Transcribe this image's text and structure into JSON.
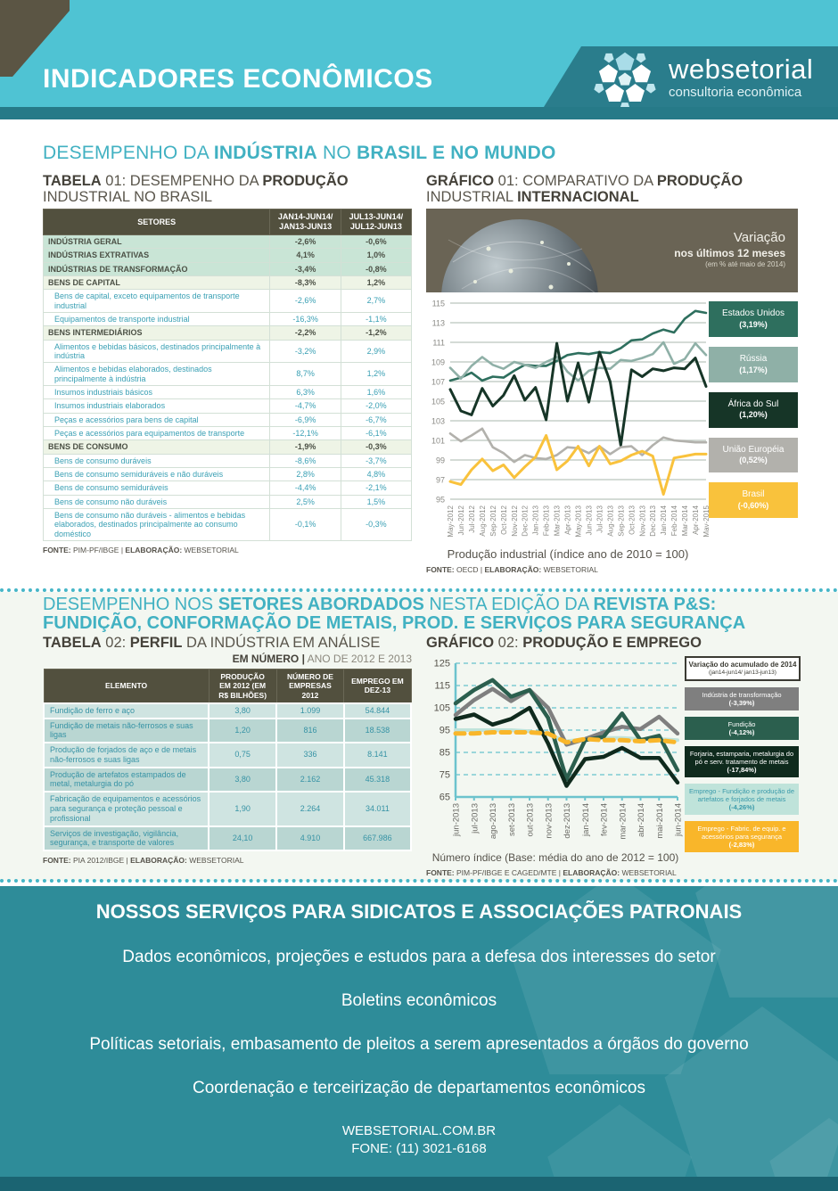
{
  "header": {
    "title": "INDICADORES ECONÔMICOS",
    "brand": "websetorial",
    "brand_sub": "consultoria econômica"
  },
  "section1": {
    "title": {
      "a": "DESEMPENHO DA ",
      "b": "INDÚSTRIA",
      "c": " NO ",
      "d": "BRASIL E NO MUNDO"
    },
    "table": {
      "title": {
        "a": "TABELA",
        "b": " 01: DESEMPENHO DA ",
        "c": "PRODUÇÃO",
        "line2": "INDUSTRIAL NO BRASIL"
      },
      "headers": [
        "SETORES",
        "JAN14-JUN14/\nJAN13-JUN13",
        "JUL13-JUN14/\nJUL12-JUN13"
      ],
      "rows": [
        {
          "type": "major",
          "label": "INDÚSTRIA GERAL",
          "v1": "-2,6%",
          "v2": "-0,6%"
        },
        {
          "type": "major",
          "label": "INDÚSTRIAS EXTRATIVAS",
          "v1": "4,1%",
          "v2": "1,0%"
        },
        {
          "type": "major",
          "label": "INDÚSTRIAS DE TRANSFORMAÇÃO",
          "v1": "-3,4%",
          "v2": "-0,8%"
        },
        {
          "type": "group",
          "label": "BENS DE CAPITAL",
          "v1": "-8,3%",
          "v2": "1,2%"
        },
        {
          "type": "sub",
          "label": "Bens de capital, exceto equipamentos de transporte industrial",
          "v1": "-2,6%",
          "v2": "2,7%"
        },
        {
          "type": "sub",
          "label": "Equipamentos de transporte industrial",
          "v1": "-16,3%",
          "v2": "-1,1%"
        },
        {
          "type": "group",
          "label": "BENS INTERMEDIÁRIOS",
          "v1": "-2,2%",
          "v2": "-1,2%"
        },
        {
          "type": "sub",
          "label": "Alimentos e bebidas básicos, destinados principalmente à indústria",
          "v1": "-3,2%",
          "v2": "2,9%"
        },
        {
          "type": "sub",
          "label": "Alimentos e bebidas elaborados, destinados principalmente à indústria",
          "v1": "8,7%",
          "v2": "1,2%"
        },
        {
          "type": "sub",
          "label": "Insumos industriais básicos",
          "v1": "6,3%",
          "v2": "1,6%"
        },
        {
          "type": "sub",
          "label": "Insumos industriais elaborados",
          "v1": "-4,7%",
          "v2": "-2,0%"
        },
        {
          "type": "sub",
          "label": "Peças e acessórios para bens de capital",
          "v1": "-6,9%",
          "v2": "-6,7%"
        },
        {
          "type": "sub",
          "label": "Peças e acessórios para equipamentos de transporte",
          "v1": "-12,1%",
          "v2": "-6,1%"
        },
        {
          "type": "group",
          "label": "BENS DE CONSUMO",
          "v1": "-1,9%",
          "v2": "-0,3%"
        },
        {
          "type": "sub",
          "label": "Bens de consumo duráveis",
          "v1": "-8,6%",
          "v2": "-3,7%"
        },
        {
          "type": "sub",
          "label": "Bens de consumo semiduráveis e não duráveis",
          "v1": "2,8%",
          "v2": "4,8%"
        },
        {
          "type": "sub",
          "label": "Bens de consumo semiduráveis",
          "v1": "-4,4%",
          "v2": "-2,1%"
        },
        {
          "type": "sub",
          "label": "Bens de consumo não duráveis",
          "v1": "2,5%",
          "v2": "1,5%"
        },
        {
          "type": "sub",
          "label": "Bens de consumo não duráveis - alimentos e bebidas elaborados, destinados principalmente ao consumo doméstico",
          "v1": "-0,1%",
          "v2": "-0,3%"
        }
      ],
      "fonte": {
        "a": "FONTE:",
        "b": " PIM-PF/IBGE | ",
        "c": "ELABORAÇÃO:",
        "d": " WEBSETORIAL"
      }
    },
    "chart": {
      "title": {
        "a": "GRÁFICO",
        "b": " 01: COMPARATIVO DA ",
        "c": "PRODUÇÃO",
        "d": "INDUSTRIAL ",
        "e": "INTERNACIONAL"
      },
      "banner": {
        "l1": "Variação",
        "l2": "nos últimos 12 meses",
        "l3": "(em % até maio de 2014)"
      },
      "legend": [
        {
          "label": "Estados Unidos",
          "value": "(3,19%)",
          "color": "#2e6f5e",
          "text": "#ffffff"
        },
        {
          "label": "Rússia",
          "value": "(1,17%)",
          "color": "#8fb0a7",
          "text": "#ffffff"
        },
        {
          "label": "África do Sul",
          "value": "(1,20%)",
          "color": "#163527",
          "text": "#ffffff"
        },
        {
          "label": "União Européia",
          "value": "(0,52%)",
          "color": "#b2b1ac",
          "text": "#ffffff"
        },
        {
          "label": "Brasil",
          "value": "(-0,60%)",
          "color": "#f9c23c",
          "text": "#ffffff"
        }
      ],
      "caption": "Produção industrial (índice ano de 2010 = 100)",
      "fonte": {
        "a": "FONTE:",
        "b": " OECD | ",
        "c": "ELABORAÇÃO:",
        "d": " WEBSETORIAL"
      }
    }
  },
  "section2": {
    "title": {
      "a": "DESEMPENHO NOS ",
      "b": "SETORES ABORDADOS",
      "c": " NESTA EDIÇÃO DA ",
      "d": "REVISTA P&S:",
      "line2": "FUNDIÇÃO, CONFORMAÇÃO DE METAIS, PROD. E SERVIÇOS PARA SEGURANÇA"
    },
    "table": {
      "title": {
        "a": "TABELA",
        "b": " 02: ",
        "c": "PERFIL",
        "d": " DA INDÚSTRIA EM ANÁLISE"
      },
      "subtitle": {
        "a": "EM NÚMERO |",
        "b": " ANO DE 2012 E 2013"
      },
      "headers": [
        "ELEMENTO",
        "PRODUÇÃO\nEM 2012 (EM\nR$ BILHÕES)",
        "NÚMERO DE\nEMPRESAS\n2012",
        "EMPREGO EM\nDEZ-13"
      ],
      "rows": [
        {
          "label": "Fundição de ferro e aço",
          "v1": "3,80",
          "v2": "1.099",
          "v3": "54.844"
        },
        {
          "label": "Fundição de metais não-ferrosos e suas ligas",
          "v1": "1,20",
          "v2": "816",
          "v3": "18.538"
        },
        {
          "label": "Produção de forjados de aço e de metais não-ferrosos e suas ligas",
          "v1": "0,75",
          "v2": "336",
          "v3": "8.141"
        },
        {
          "label": "Produção de artefatos estampados de metal, metalurgia do pó",
          "v1": "3,80",
          "v2": "2.162",
          "v3": "45.318"
        },
        {
          "label": "Fabricação de equipamentos e acessórios para segurança e proteção pessoal e profissional",
          "v1": "1,90",
          "v2": "2.264",
          "v3": "34.011"
        },
        {
          "label": "Serviços de investigação, vigilância, segurança, e transporte de valores",
          "v1": "24,10",
          "v2": "4.910",
          "v3": "667.986"
        }
      ],
      "fonte": {
        "a": "FONTE:",
        "b": " PIA 2012/IBGE | ",
        "c": "ELABORAÇÃO:",
        "d": " WEBSETORIAL"
      }
    },
    "chart": {
      "title": {
        "a": "GRÁFICO",
        "b": " 02: ",
        "c": "PRODUÇÃO E EMPREGO"
      },
      "legend_title": {
        "a": "Variação do acumulado de 2014",
        "b": "(jan14-jun14/ jan13-jun13)"
      },
      "legend": [
        {
          "label": "Indústria de transformação",
          "value": "(-3,39%)",
          "color": "#7f7f7f",
          "text": "#ffffff"
        },
        {
          "label": "Fundição",
          "value": "(-4,12%)",
          "color": "#2b5f4e",
          "text": "#ffffff"
        },
        {
          "label": "Forjaria, estamparia, metalurgia do pó e serv. tratamento de metais",
          "value": "(-17,84%)",
          "color": "#0f2a1d",
          "text": "#ffffff"
        },
        {
          "label": "Emprego - Fundição e produção de artefatos e forjados de metais",
          "value": "(-4,26%)",
          "color": "#bfe3da",
          "text": "#3a9aaa"
        },
        {
          "label": "Emprego - Fabric. de equip. e acessórios para segurança",
          "value": "(-2,83%)",
          "color": "#f9b62a",
          "text": "#ffffff"
        }
      ],
      "caption": "Número índice (Base: média do ano de 2012 = 100)",
      "fonte": {
        "a": "FONTE:",
        "b": " PIM-PF/IBGE E CAGED/MTE | ",
        "c": "ELABORAÇÃO:",
        "d": " WEBSETORIAL"
      }
    }
  },
  "bottom": {
    "heading": "NOSSOS SERVIÇOS PARA SIDICATOS E ASSOCIAÇÕES PATRONAIS",
    "lines": [
      "Dados econômicos, projeções e estudos para a defesa dos interesses do setor",
      "Boletins econômicos",
      "Políticas setoriais, embasamento de pleitos a serem apresentados a órgãos do governo",
      "Coordenação e terceirização de departamentos econômicos"
    ],
    "site": "WEBSETORIAL.COM.BR",
    "phone": "FONE: (11) 3021-6168"
  },
  "chart_data": [
    {
      "type": "line",
      "title": "Comparativo da produção industrial internacional",
      "ylabel": "Produção industrial (índice ano de 2010 = 100)",
      "ylim": [
        95,
        115
      ],
      "yticks": [
        95,
        97,
        99,
        101,
        103,
        105,
        107,
        109,
        111,
        113,
        115
      ],
      "x": [
        "May-2012",
        "Jun-2012",
        "Jul-2012",
        "Aug-2012",
        "Sep-2012",
        "Oct-2012",
        "Nov-2012",
        "Dec-2012",
        "Jan-2013",
        "Feb-2013",
        "Mar-2013",
        "Apr-2013",
        "May-2013",
        "Jun-2013",
        "Jul-2013",
        "Aug-2013",
        "Sep-2013",
        "Oct-2013",
        "Nov-2013",
        "Dec-2013",
        "Jan-2014",
        "Feb-2014",
        "Mar-2014",
        "Apr-2014",
        "May-2015"
      ],
      "series": [
        {
          "name": "Estados Unidos",
          "color": "#2e6f5e",
          "width": 2.6,
          "values": [
            107.1,
            107.4,
            107.9,
            107.1,
            107.5,
            107.4,
            108.1,
            108.7,
            108.6,
            108.6,
            109.1,
            109.7,
            109.9,
            109.8,
            110.0,
            109.9,
            110.4,
            111.2,
            111.3,
            111.9,
            112.3,
            112.0,
            113.4,
            114.2,
            114.0
          ]
        },
        {
          "name": "Rússia",
          "color": "#8fb0a7",
          "width": 2.6,
          "values": [
            108.4,
            107.3,
            108.6,
            109.5,
            108.7,
            108.3,
            109.0,
            108.7,
            108.4,
            109.0,
            109.5,
            108.0,
            107.1,
            108.1,
            108.4,
            108.3,
            109.2,
            109.1,
            109.4,
            109.8,
            111.0,
            108.8,
            109.3,
            110.9,
            109.7
          ]
        },
        {
          "name": "África do Sul",
          "color": "#163527",
          "width": 3,
          "values": [
            106.2,
            104.0,
            103.6,
            106.3,
            104.5,
            105.6,
            107.6,
            105.1,
            106.4,
            103.1,
            110.9,
            105.0,
            108.9,
            104.9,
            110.0,
            107.0,
            100.5,
            108.2,
            107.5,
            108.3,
            108.1,
            108.4,
            108.3,
            109.4,
            106.5
          ]
        },
        {
          "name": "União Européia",
          "color": "#b2b1ac",
          "width": 2.6,
          "values": [
            101.7,
            100.9,
            101.5,
            102.2,
            100.3,
            99.7,
            98.8,
            99.5,
            99.2,
            99.1,
            99.5,
            100.3,
            100.2,
            99.7,
            100.4,
            99.6,
            100.3,
            100.4,
            99.5,
            100.5,
            101.3,
            101.0,
            100.9,
            100.8,
            100.8
          ]
        },
        {
          "name": "Brasil",
          "color": "#f9c23c",
          "width": 3,
          "values": [
            96.8,
            96.5,
            98.0,
            99.1,
            97.9,
            98.5,
            97.2,
            98.3,
            99.3,
            101.5,
            98.0,
            98.9,
            100.4,
            98.4,
            100.4,
            98.6,
            98.9,
            99.5,
            99.9,
            99.4,
            95.5,
            99.2,
            99.4,
            99.6,
            99.6
          ]
        }
      ]
    },
    {
      "type": "line",
      "title": "Produção e emprego",
      "ylabel": "Número índice (Base: média do ano de 2012 = 100)",
      "ylim": [
        65,
        125
      ],
      "yticks": [
        65,
        75,
        85,
        95,
        105,
        115,
        125
      ],
      "x": [
        "jun-2013",
        "jul-2013",
        "ago-2013",
        "set-2013",
        "out-2013",
        "nov-2013",
        "dez-2013",
        "jan-2014",
        "fev-2014",
        "mar-2014",
        "abr-2014",
        "mai-2014",
        "jun-2014"
      ],
      "series": [
        {
          "name": "Emprego - Fundição e produção de artefatos e forjados de metais",
          "color": "#bfe3da",
          "width": 4,
          "values": [
            95,
            95,
            95,
            95,
            94.5,
            93,
            90,
            91,
            91.5,
            91.5,
            91,
            91,
            90.5
          ]
        },
        {
          "name": "Indústria de transformação",
          "color": "#7f7f7f",
          "width": 4.5,
          "values": [
            101.8,
            108.5,
            113.5,
            108,
            113,
            105,
            88.5,
            91,
            94,
            96.5,
            95.5,
            101,
            93.5
          ]
        },
        {
          "name": "Fundição",
          "color": "#2b5f4e",
          "width": 4.5,
          "values": [
            107,
            113,
            117.5,
            110,
            113,
            100.5,
            73,
            90.5,
            92,
            102.5,
            90.5,
            92.5,
            77
          ]
        },
        {
          "name": "Forjaria, estamparia, metalurgia do pó e serv. tratamento de metais",
          "color": "#0f2a1d",
          "width": 4.5,
          "values": [
            100,
            102,
            97.5,
            100,
            105,
            89,
            70,
            82,
            83,
            87,
            82.5,
            82.5,
            71.5
          ]
        },
        {
          "name": "Emprego - Fabric. de equip. e acessórios para segurança",
          "color": "#f9b62a",
          "width": 5,
          "dash": "10 7",
          "values": [
            93.5,
            93.5,
            94,
            94,
            94,
            93.5,
            89.5,
            91,
            90.5,
            90.5,
            90,
            90.5,
            89.5
          ]
        }
      ]
    }
  ]
}
